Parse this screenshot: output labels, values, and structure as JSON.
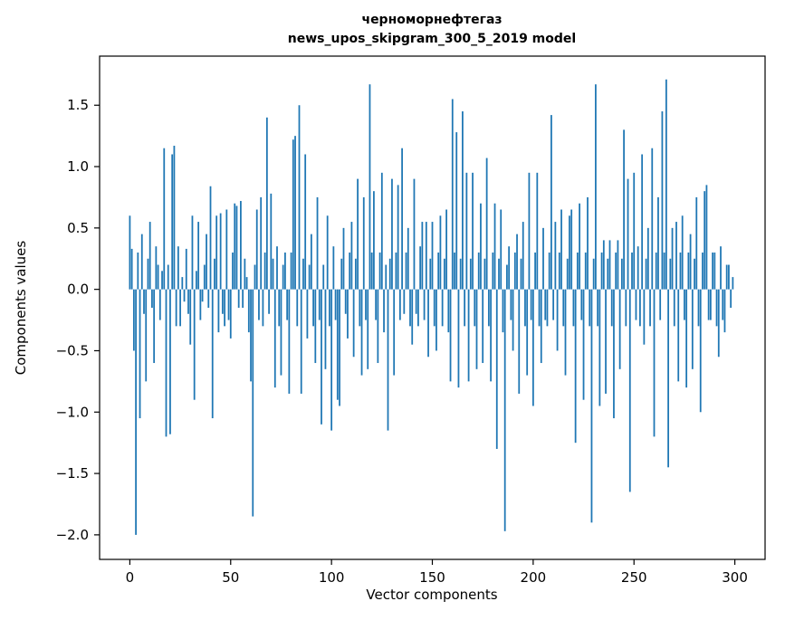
{
  "figure": {
    "background_color": "#ffffff",
    "axes_color": "#000000"
  },
  "chart_data": {
    "type": "bar",
    "title_lines": [
      "черноморнефтегаз",
      "news_upos_skipgram_300_5_2019 model"
    ],
    "xlabel": "Vector components",
    "ylabel": "Components values",
    "bar_color": "#1f77b4",
    "xlim": [
      -15,
      315
    ],
    "ylim": [
      -2.2,
      1.9
    ],
    "xticks": [
      0,
      50,
      100,
      150,
      200,
      250,
      300
    ],
    "xtick_labels": [
      "0",
      "50",
      "100",
      "150",
      "200",
      "250",
      "300"
    ],
    "yticks": [
      -2.0,
      -1.5,
      -1.0,
      -0.5,
      0.0,
      0.5,
      1.0,
      1.5
    ],
    "ytick_labels": [
      "−2.0",
      "−1.5",
      "−1.0",
      "−0.5",
      "0.0",
      "0.5",
      "1.0",
      "1.5"
    ],
    "grid": false,
    "legend": null,
    "x": "index 0..299",
    "values": [
      0.6,
      0.33,
      -0.5,
      -2.0,
      0.3,
      -1.05,
      0.45,
      -0.2,
      -0.75,
      0.25,
      0.55,
      -0.15,
      -0.6,
      0.35,
      0.2,
      -0.25,
      0.15,
      1.15,
      -1.2,
      0.2,
      -1.18,
      1.1,
      1.17,
      -0.3,
      0.35,
      -0.3,
      0.1,
      -0.1,
      0.33,
      -0.2,
      -0.45,
      0.6,
      -0.9,
      0.15,
      0.55,
      -0.25,
      -0.1,
      0.2,
      0.45,
      -0.15,
      0.84,
      -1.05,
      0.25,
      0.6,
      -0.35,
      0.62,
      -0.2,
      -0.3,
      0.65,
      -0.25,
      -0.4,
      0.3,
      0.7,
      0.68,
      -0.15,
      0.72,
      -0.15,
      0.25,
      0.1,
      -0.35,
      -0.75,
      -1.85,
      0.2,
      0.65,
      -0.25,
      0.75,
      -0.3,
      0.3,
      1.4,
      -0.2,
      0.78,
      0.25,
      -0.8,
      0.35,
      -0.3,
      -0.7,
      0.2,
      0.3,
      -0.25,
      -0.85,
      0.3,
      1.22,
      1.25,
      -0.3,
      1.5,
      -0.85,
      0.25,
      1.1,
      -0.4,
      0.2,
      0.45,
      -0.3,
      -0.6,
      0.75,
      -0.25,
      -1.1,
      0.2,
      -0.65,
      0.6,
      -0.3,
      -1.15,
      0.35,
      -0.25,
      -0.9,
      -0.95,
      0.25,
      0.5,
      -0.2,
      -0.4,
      0.3,
      0.55,
      -0.55,
      0.25,
      0.9,
      -0.3,
      -0.7,
      0.75,
      -0.25,
      -0.65,
      1.67,
      0.3,
      0.8,
      -0.25,
      -0.6,
      0.3,
      0.95,
      -0.35,
      0.2,
      -1.15,
      0.25,
      0.9,
      -0.7,
      0.3,
      0.85,
      -0.25,
      1.15,
      -0.2,
      0.3,
      0.5,
      -0.3,
      -0.45,
      0.9,
      -0.2,
      -0.3,
      0.35,
      0.55,
      -0.25,
      0.55,
      -0.55,
      0.25,
      0.55,
      -0.3,
      -0.5,
      0.3,
      0.6,
      -0.3,
      0.25,
      0.65,
      -0.35,
      -0.75,
      1.55,
      0.3,
      1.28,
      -0.8,
      0.25,
      1.45,
      -0.3,
      0.95,
      -0.75,
      0.25,
      0.95,
      -0.3,
      -0.65,
      0.3,
      0.7,
      -0.6,
      0.25,
      1.07,
      -0.3,
      -0.75,
      0.3,
      0.7,
      -1.3,
      0.25,
      0.65,
      -0.35,
      -1.97,
      0.2,
      0.35,
      -0.25,
      -0.5,
      0.3,
      0.45,
      -0.85,
      0.25,
      0.55,
      -0.3,
      -0.7,
      0.95,
      -0.25,
      -0.95,
      0.3,
      0.95,
      -0.3,
      -0.6,
      0.5,
      -0.25,
      -0.3,
      0.3,
      1.42,
      -0.25,
      0.55,
      -0.5,
      0.3,
      0.65,
      -0.3,
      -0.7,
      0.25,
      0.6,
      0.65,
      -0.3,
      -1.25,
      0.3,
      0.7,
      -0.25,
      -0.9,
      0.3,
      0.75,
      -0.3,
      -1.9,
      0.25,
      1.67,
      -0.3,
      -0.95,
      0.3,
      0.4,
      -0.85,
      0.25,
      0.4,
      -0.3,
      -1.05,
      0.3,
      0.4,
      -0.65,
      0.25,
      1.3,
      -0.3,
      0.9,
      -1.65,
      0.3,
      0.95,
      -0.25,
      0.35,
      -0.3,
      1.1,
      -0.45,
      0.25,
      0.5,
      -0.3,
      1.15,
      -1.2,
      0.3,
      0.75,
      -0.25,
      1.45,
      0.3,
      1.71,
      -1.45,
      0.25,
      0.5,
      -0.3,
      0.55,
      -0.75,
      0.3,
      0.6,
      -0.25,
      -0.8,
      0.3,
      0.45,
      -0.65,
      0.25,
      0.75,
      -0.3,
      -1.0,
      0.3,
      0.8,
      0.85,
      -0.25,
      -0.25,
      0.3,
      0.3,
      -0.3,
      -0.55,
      0.35,
      -0.25,
      -0.35,
      0.2,
      0.2,
      -0.15,
      0.1
    ]
  }
}
